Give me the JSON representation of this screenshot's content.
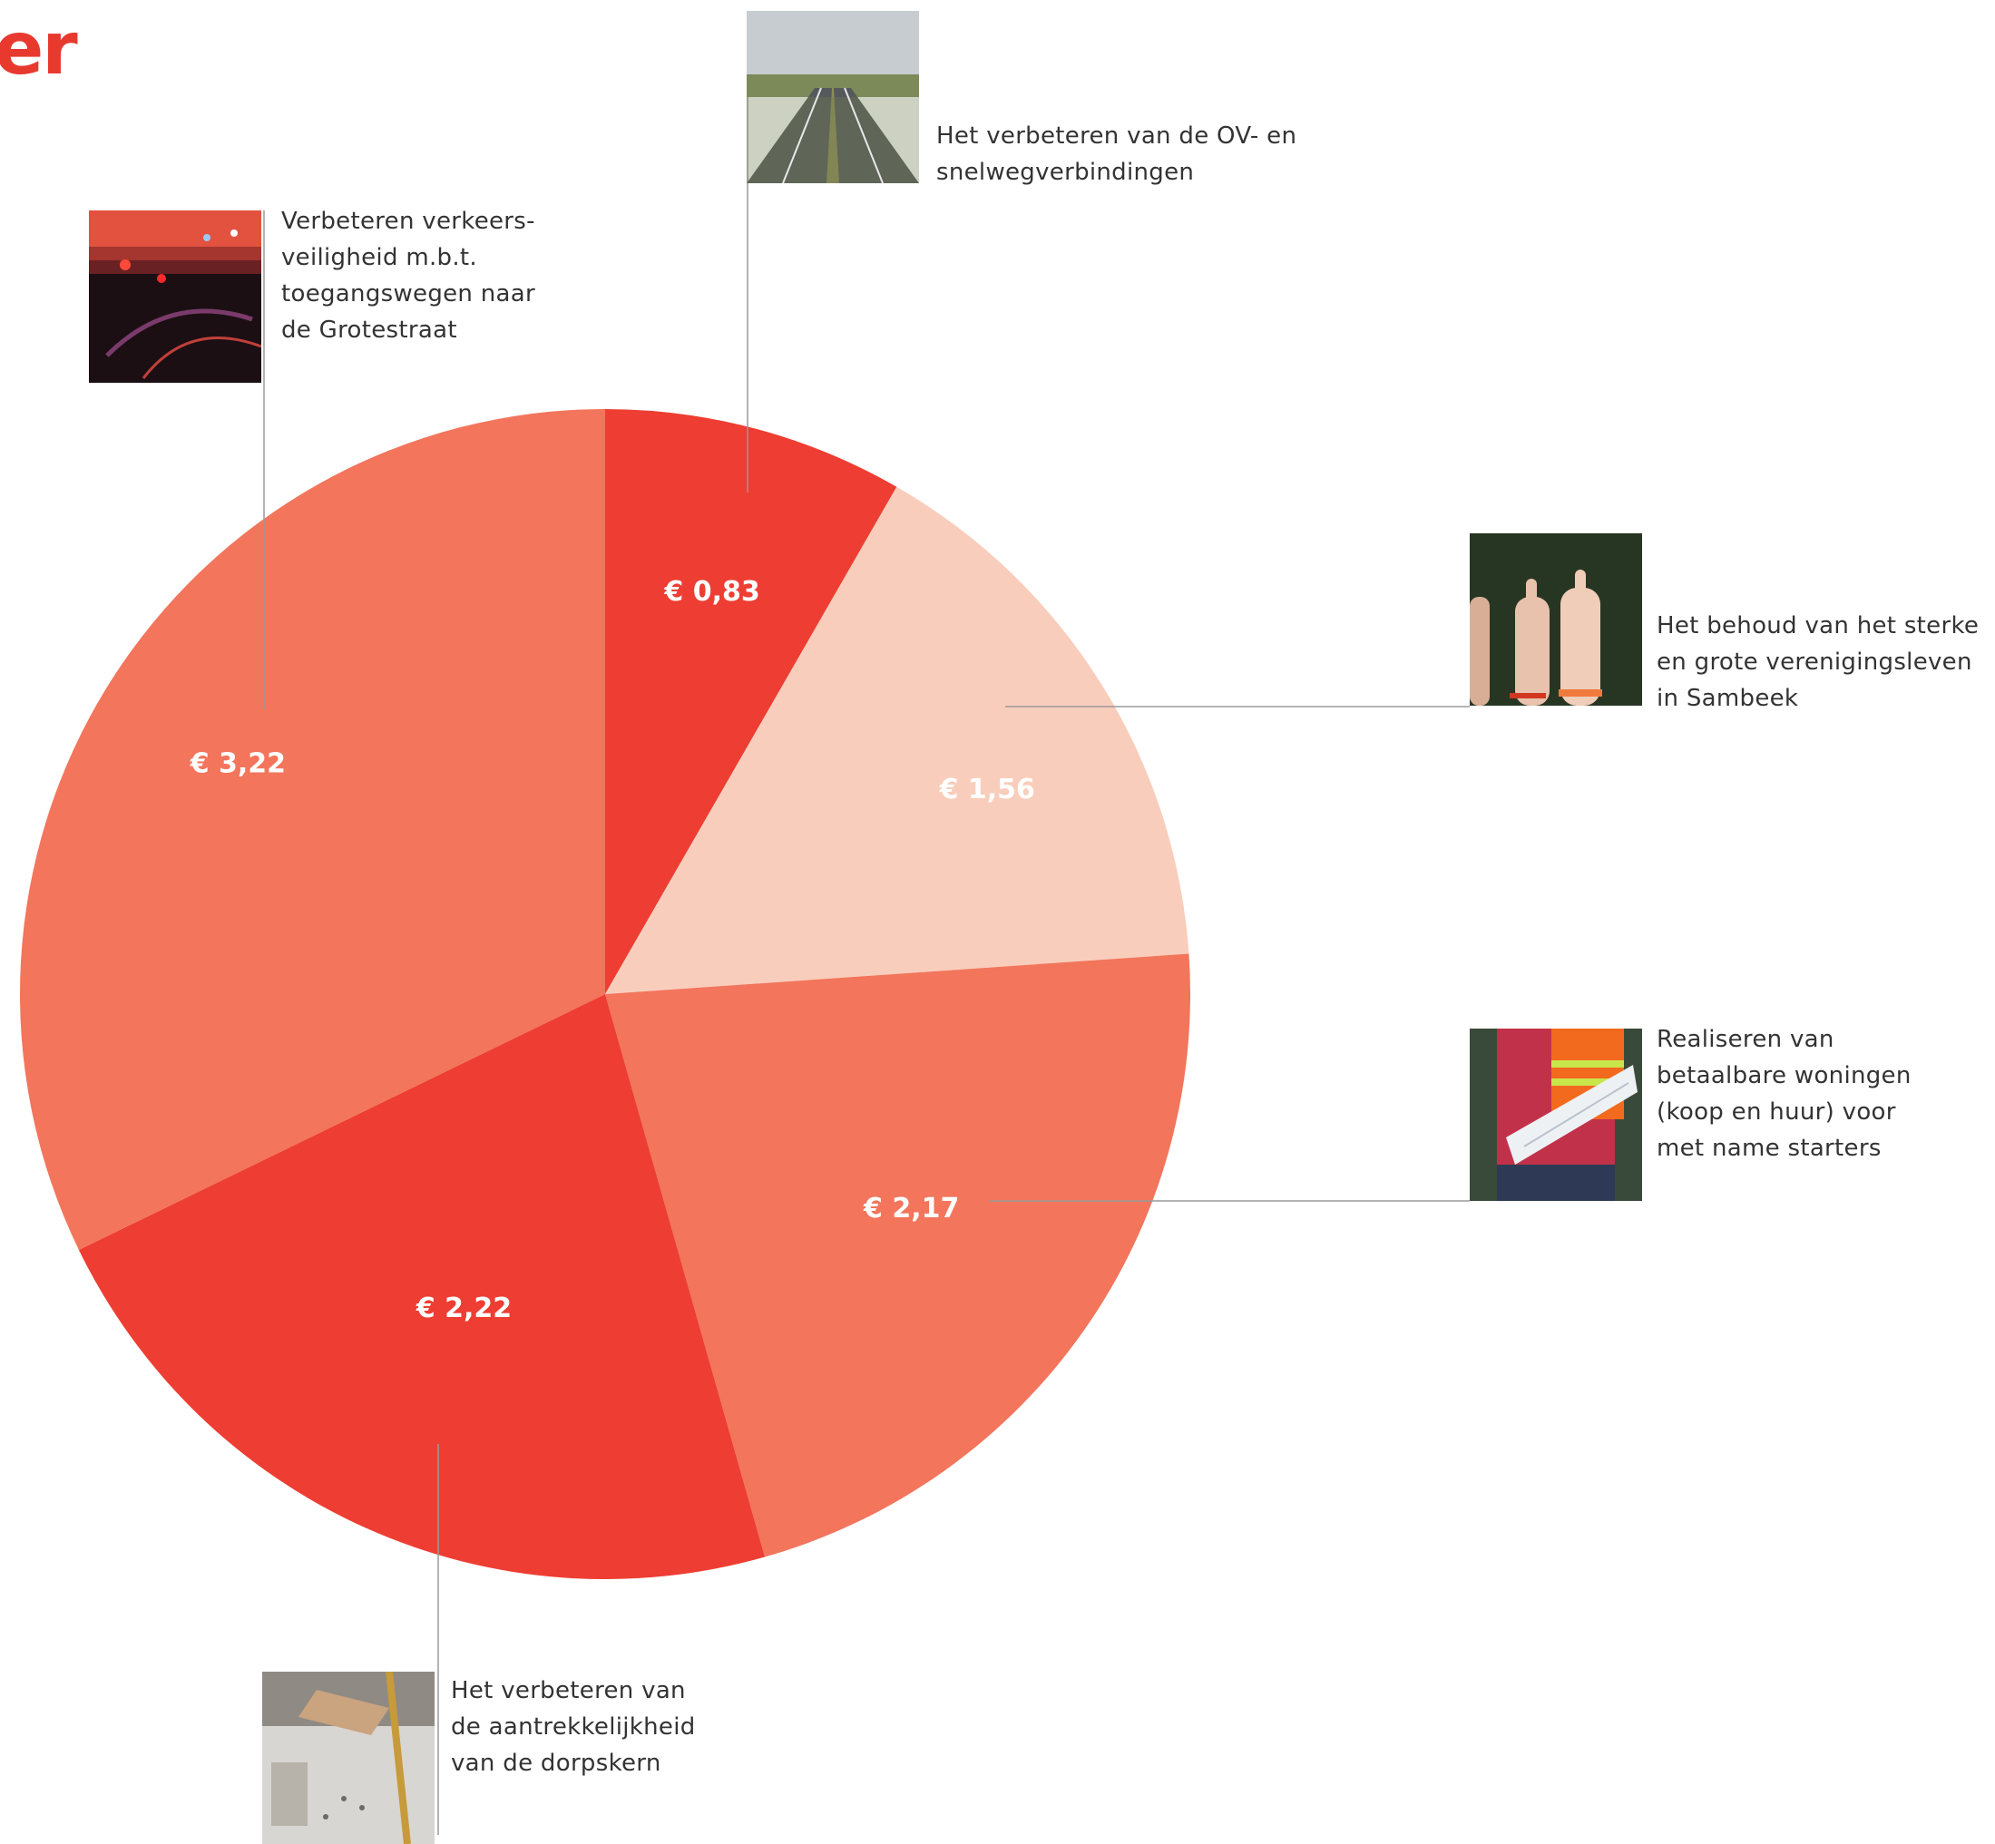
{
  "heading": "er",
  "chart_data": {
    "type": "pie",
    "currency": "€",
    "slices": [
      {
        "label": "Het verbeteren van de OV- en snelwegverbindingen",
        "value": 0.83,
        "display": "€ 0,83",
        "color": "#ee3d32"
      },
      {
        "label": "Het behoud van het sterke en grote verenigingsleven in Sambeek",
        "value": 1.56,
        "display": "€ 1,56",
        "color": "#f9cdbb"
      },
      {
        "label": "Realiseren van betaalbare woningen (koop en huur) voor met name starters",
        "value": 2.17,
        "display": "€ 2,17",
        "color": "#f2755c"
      },
      {
        "label": "Het verbeteren van de aantrekkelijkheid van de dorpskern",
        "value": 2.22,
        "display": "€ 2,22",
        "color": "#ee3d32"
      },
      {
        "label": "Verbeteren verkeers-veiligheid m.b.t. toegangswegen naar de Grotestraat",
        "value": 3.22,
        "display": "€ 3,22",
        "color": "#f2755c"
      }
    ]
  },
  "callouts": {
    "highway": {
      "lines": [
        "Het verbeteren van de OV- en",
        "snelwegverbindingen"
      ],
      "image": "highway-photo"
    },
    "clubs": {
      "lines": [
        "Het behoud van het sterke",
        "en grote verenigingsleven",
        "in Sambeek"
      ],
      "image": "raised-hands-photo"
    },
    "housing": {
      "lines": [
        "Realiseren van",
        "betaalbare woningen",
        "(koop en huur) voor",
        "met name starters"
      ],
      "image": "construction-worker-blueprint-photo"
    },
    "village": {
      "lines": [
        "Het verbeteren van",
        "de aantrekkelijkheid",
        "van de dorpskern"
      ],
      "image": "architect-scale-model-photo"
    },
    "traffic": {
      "lines": [
        "Verbeteren verkeers-",
        "veiligheid m.b.t.",
        "toegangswegen naar",
        "de Grotestraat"
      ],
      "image": "night-traffic-photo"
    }
  }
}
